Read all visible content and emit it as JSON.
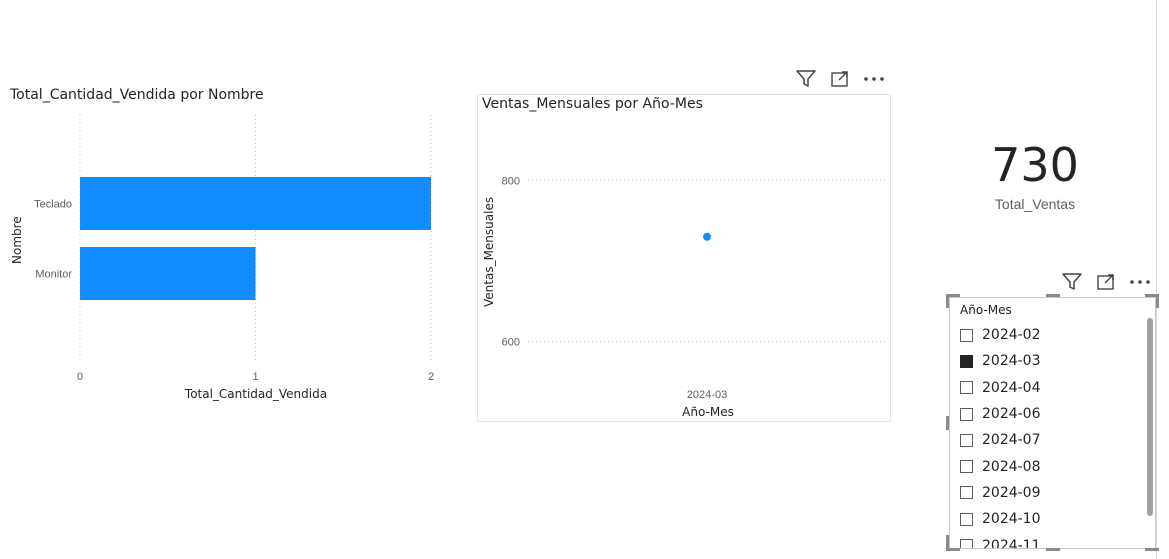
{
  "bar_visual": {
    "title": "Total_Cantidad_Vendida por Nombre",
    "y_axis_title": "Nombre",
    "x_axis_title": "Total_Cantidad_Vendida"
  },
  "line_visual": {
    "title": "Ventas_Mensuales por Año-Mes",
    "y_axis_title": "Ventas_Mensuales",
    "x_axis_title": "Año-Mes"
  },
  "card": {
    "value": "730",
    "label": "Total_Ventas"
  },
  "slicer": {
    "header": "Año-Mes",
    "items": [
      {
        "label": "2024-02",
        "checked": false
      },
      {
        "label": "2024-03",
        "checked": true
      },
      {
        "label": "2024-04",
        "checked": false
      },
      {
        "label": "2024-06",
        "checked": false
      },
      {
        "label": "2024-07",
        "checked": false
      },
      {
        "label": "2024-08",
        "checked": false
      },
      {
        "label": "2024-09",
        "checked": false
      },
      {
        "label": "2024-10",
        "checked": false
      },
      {
        "label": "2024-11",
        "checked": false
      }
    ]
  },
  "icons": {
    "filter": "filter-icon",
    "focus_mode": "focus-mode-icon",
    "more_options": "more-options-icon"
  },
  "colors": {
    "bar": "#118DFF",
    "point": "#118DFF"
  },
  "chart_data": [
    {
      "type": "bar",
      "orientation": "horizontal",
      "title": "Total_Cantidad_Vendida por Nombre",
      "xlabel": "Total_Cantidad_Vendida",
      "ylabel": "Nombre",
      "categories": [
        "Teclado",
        "Monitor"
      ],
      "values": [
        2,
        1
      ],
      "x_ticks": [
        "0",
        "1",
        "2"
      ],
      "xlim": [
        0,
        2
      ],
      "grid": true
    },
    {
      "type": "scatter",
      "title": "Ventas_Mensuales por Año-Mes",
      "xlabel": "Año-Mes",
      "ylabel": "Ventas_Mensuales",
      "x": [
        "2024-03"
      ],
      "y": [
        730
      ],
      "y_ticks": [
        "800",
        "600"
      ],
      "ylim": [
        550,
        840
      ],
      "grid": true
    }
  ]
}
